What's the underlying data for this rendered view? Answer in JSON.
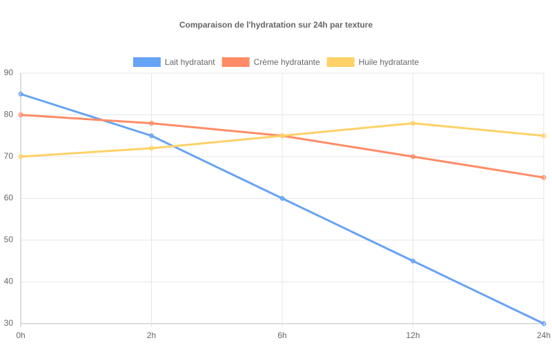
{
  "chart_data": {
    "type": "line",
    "title": "Comparaison de l'hydratation sur 24h par texture",
    "categories": [
      "0h",
      "2h",
      "6h",
      "12h",
      "24h"
    ],
    "series": [
      {
        "name": "Lait hydratant",
        "color": "#66a3f5",
        "values": [
          85,
          75,
          60,
          45,
          30
        ]
      },
      {
        "name": "Crème hydratante",
        "color": "#ff8c66",
        "values": [
          80,
          78,
          75,
          70,
          65
        ]
      },
      {
        "name": "Huile hydratante",
        "color": "#ffd166",
        "values": [
          70,
          72,
          75,
          78,
          75
        ]
      }
    ],
    "ylim": [
      30,
      90
    ],
    "yticks": [
      30,
      40,
      50,
      60,
      70,
      80,
      90
    ],
    "grid": true,
    "legend": "top"
  }
}
